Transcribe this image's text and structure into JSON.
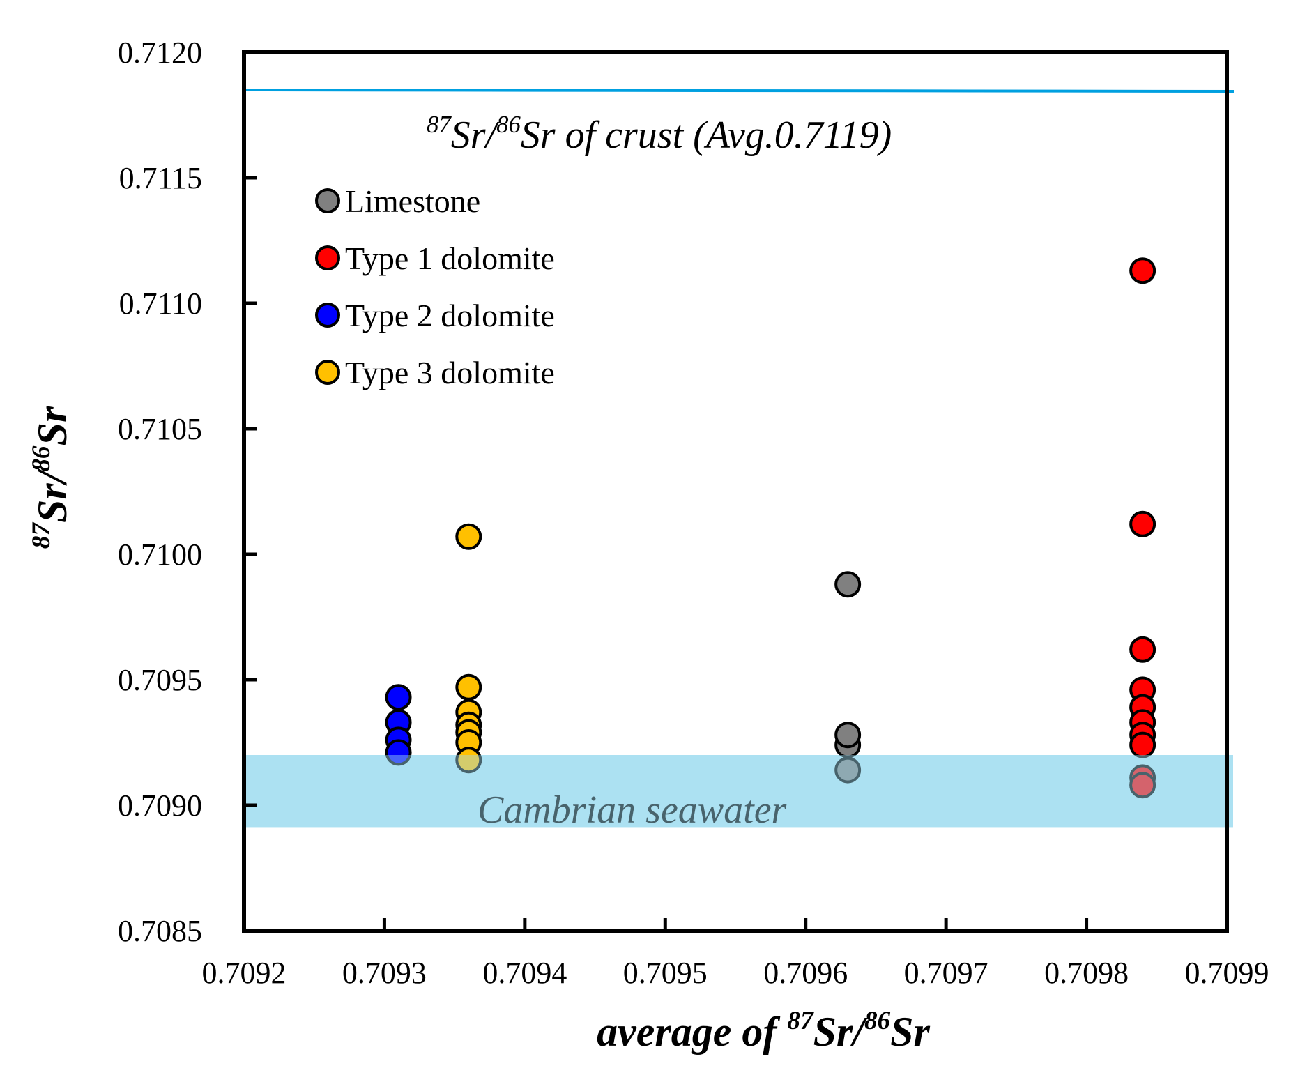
{
  "chart_data": {
    "type": "scatter",
    "xlabel": {
      "prefix": "average of ",
      "sup1": "87",
      "mid": "Sr/",
      "sup2": "86",
      "suffix": "Sr"
    },
    "ylabel": {
      "sup1": "87",
      "mid": "Sr/",
      "sup2": "86",
      "suffix": "Sr"
    },
    "xlim": [
      0.7092,
      0.7099
    ],
    "ylim": [
      0.7085,
      0.712
    ],
    "xticks": [
      "0.7092",
      "0.7093",
      "0.7094",
      "0.7095",
      "0.7096",
      "0.7097",
      "0.7098",
      "0.7099"
    ],
    "yticks": [
      "0.7085",
      "0.7090",
      "0.7095",
      "0.7100",
      "0.7105",
      "0.7110",
      "0.7115",
      "0.7120"
    ],
    "grid": false,
    "legend_position": "top-left",
    "series": [
      {
        "name": "Limestone",
        "color": "#808080",
        "points": [
          [
            0.70963,
            0.70988
          ],
          [
            0.70963,
            0.70924
          ],
          [
            0.70963,
            0.70928
          ],
          [
            0.70963,
            0.70914
          ]
        ]
      },
      {
        "name": "Type 1 dolomite",
        "color": "#ff0000",
        "points": [
          [
            0.70984,
            0.71113
          ],
          [
            0.70984,
            0.71012
          ],
          [
            0.70984,
            0.70962
          ],
          [
            0.70984,
            0.70946
          ],
          [
            0.70984,
            0.70939
          ],
          [
            0.70984,
            0.70933
          ],
          [
            0.70984,
            0.70928
          ],
          [
            0.70984,
            0.70924
          ],
          [
            0.70984,
            0.70911
          ],
          [
            0.70984,
            0.70908
          ]
        ]
      },
      {
        "name": "Type 2 dolomite",
        "color": "#0000ff",
        "points": [
          [
            0.70931,
            0.70943
          ],
          [
            0.70931,
            0.70933
          ],
          [
            0.70931,
            0.70926
          ],
          [
            0.70931,
            0.70921
          ]
        ]
      },
      {
        "name": "Type 3 dolomite",
        "color": "#ffc000",
        "points": [
          [
            0.70936,
            0.71007
          ],
          [
            0.70936,
            0.70947
          ],
          [
            0.70936,
            0.70937
          ],
          [
            0.70936,
            0.70932
          ],
          [
            0.70936,
            0.70929
          ],
          [
            0.70936,
            0.70925
          ],
          [
            0.70936,
            0.70918
          ]
        ]
      }
    ],
    "reference_line": {
      "y": 0.71185,
      "color": "#00a0e0",
      "label": {
        "sup1": "87",
        "mid": "Sr/",
        "sup2": "86",
        "suffix": "Sr of   crust (Avg.0.7119)"
      }
    },
    "reference_band": {
      "y_range": [
        0.70891,
        0.7092
      ],
      "color": "#9fdcf0",
      "label": "Cambrian seawater"
    }
  }
}
